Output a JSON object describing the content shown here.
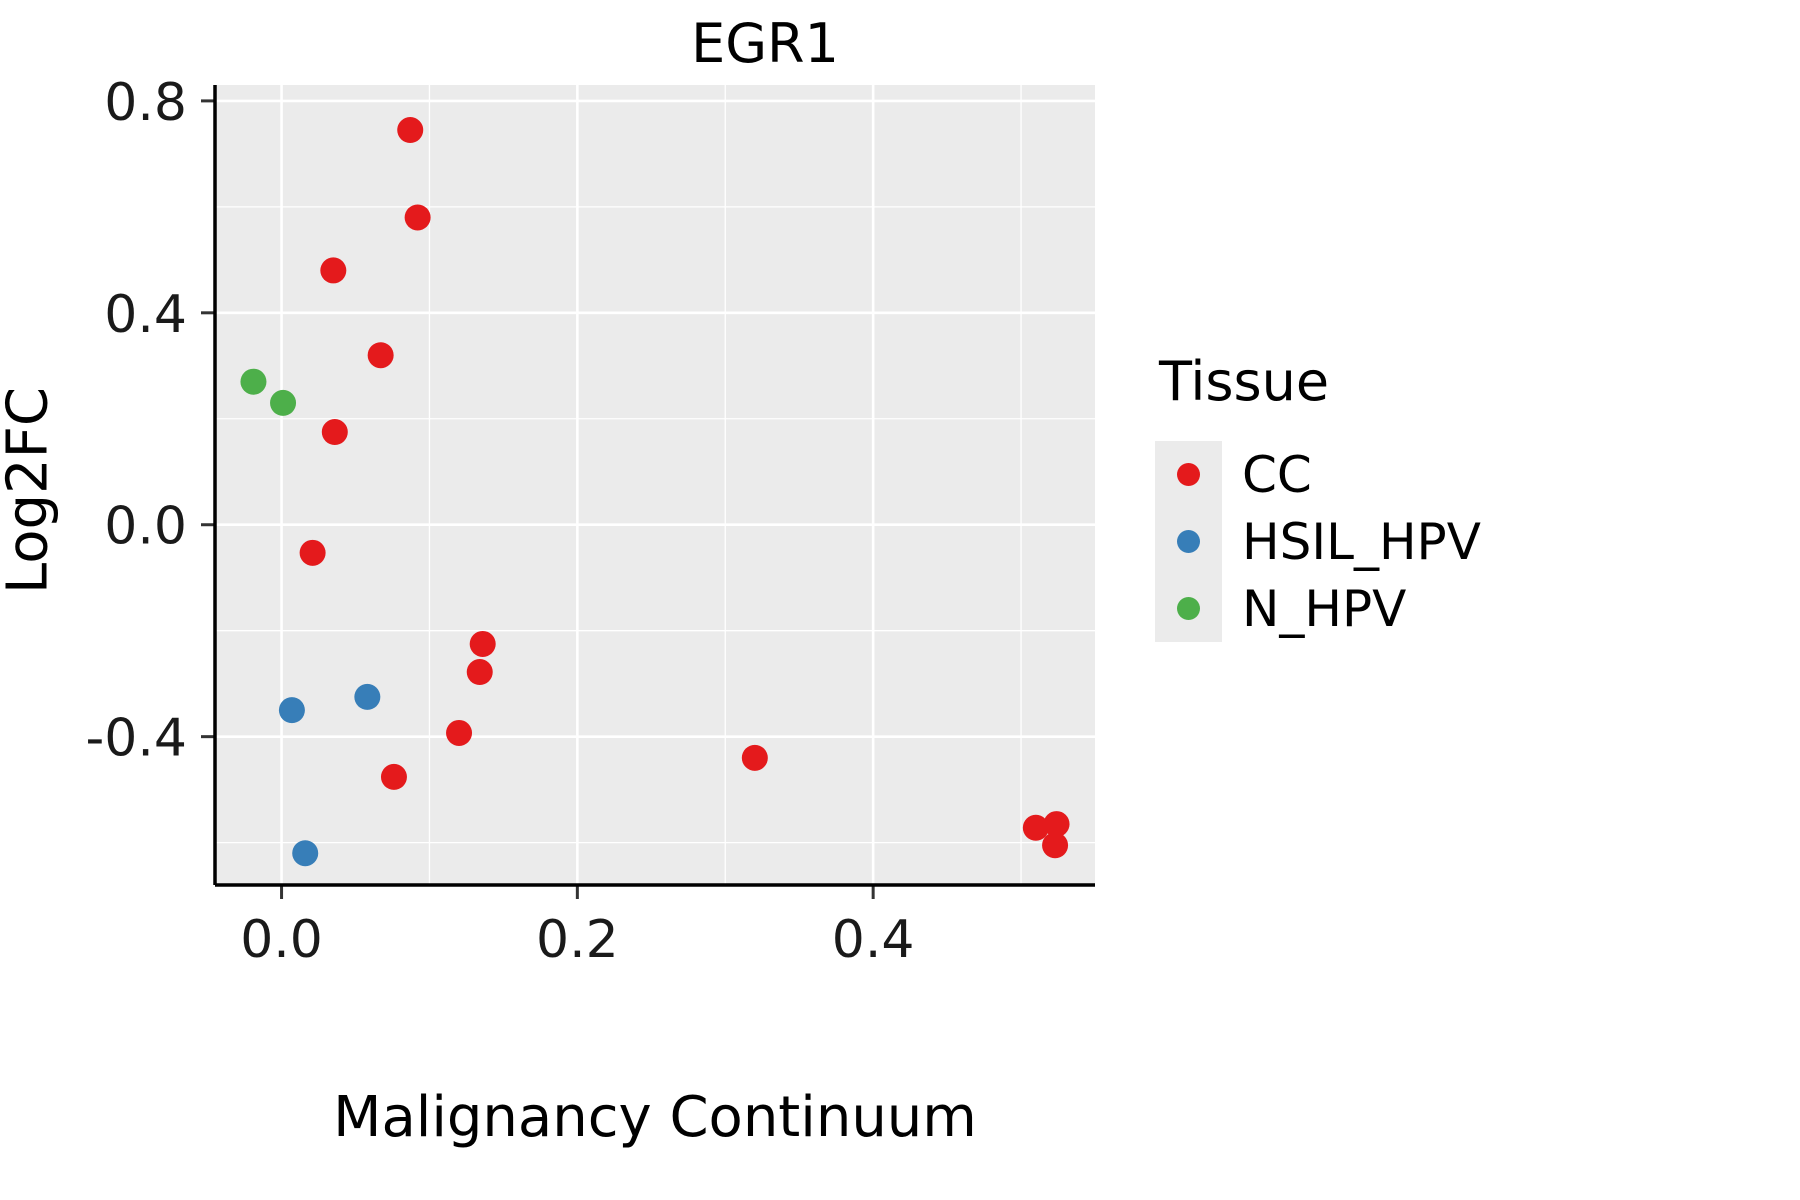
{
  "chart_data": {
    "type": "scatter",
    "title": "EGR1",
    "xlabel": "Malignancy Continuum",
    "ylabel": "Log2FC",
    "legend_title": "Tissue",
    "legend_position": "right",
    "xlim": [
      -0.045,
      0.55
    ],
    "ylim": [
      -0.68,
      0.83
    ],
    "x_ticks": [
      0.0,
      0.2,
      0.4
    ],
    "x_tick_labels": [
      "0.0",
      "0.2",
      "0.4"
    ],
    "x_minor_ticks": [
      0.1,
      0.3,
      0.5
    ],
    "y_ticks": [
      0.8,
      0.4,
      0.0,
      -0.4
    ],
    "y_tick_labels": [
      "0.8",
      "0.4",
      "0.0",
      "-0.4"
    ],
    "y_minor_ticks": [
      0.6,
      0.2,
      -0.2,
      -0.6
    ],
    "grid": true,
    "panel_background": "#ebebeb",
    "grid_color": "#ffffff",
    "axis_color": "#000000",
    "series": [
      {
        "name": "CC",
        "color": "#e41a1c",
        "points": [
          [
            0.087,
            0.745
          ],
          [
            0.092,
            0.58
          ],
          [
            0.035,
            0.48
          ],
          [
            0.067,
            0.32
          ],
          [
            0.036,
            0.175
          ],
          [
            0.021,
            -0.053
          ],
          [
            0.136,
            -0.225
          ],
          [
            0.134,
            -0.278
          ],
          [
            0.12,
            -0.393
          ],
          [
            0.32,
            -0.44
          ],
          [
            0.076,
            -0.476
          ],
          [
            0.51,
            -0.572
          ],
          [
            0.524,
            -0.565
          ],
          [
            0.523,
            -0.605
          ]
        ]
      },
      {
        "name": "HSIL_HPV",
        "color": "#377eb8",
        "points": [
          [
            0.007,
            -0.35
          ],
          [
            0.058,
            -0.325
          ],
          [
            0.016,
            -0.62
          ]
        ]
      },
      {
        "name": "N_HPV",
        "color": "#4daf4a",
        "points": [
          [
            -0.019,
            0.27
          ],
          [
            0.001,
            0.23
          ]
        ]
      }
    ]
  }
}
